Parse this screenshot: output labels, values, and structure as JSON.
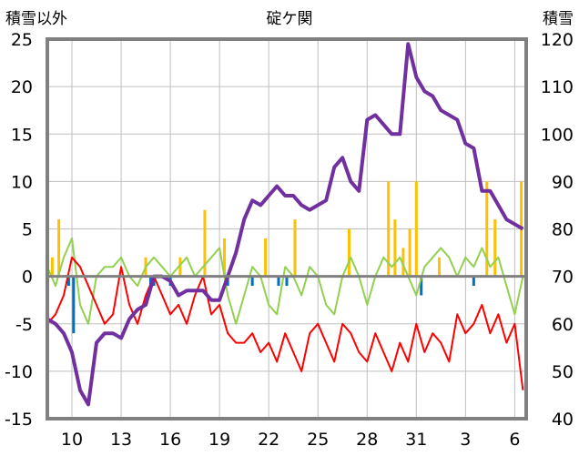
{
  "chart_data": {
    "type": "line",
    "title": "碇ケ関",
    "ylabel_left": "積雪以外",
    "ylabel_right": "積雪",
    "ylim_left": [
      -15,
      25
    ],
    "ylim_right": [
      40,
      120
    ],
    "yticks_left": [
      "25",
      "20",
      "15",
      "10",
      "5",
      "0",
      "-5",
      "-10",
      "-15"
    ],
    "yticks_right": [
      "120",
      "110",
      "100",
      "90",
      "80",
      "70",
      "60",
      "50",
      "40"
    ],
    "xticks": [
      "10",
      "13",
      "16",
      "19",
      "22",
      "25",
      "28",
      "31",
      "3",
      "6"
    ],
    "x_range_days": [
      8.5,
      37.7
    ],
    "grid": true,
    "colors": {
      "snow_depth": "#7030a0",
      "max_temp": "#92d050",
      "min_temp": "#ff0000",
      "precip": "#ffc000",
      "snow_change": "#0070c0",
      "frame": "#808080",
      "grid": "#bfbfbf"
    },
    "series": [
      {
        "type": "line",
        "axis": "right",
        "color_key": "snow_depth",
        "x": [
          8.5,
          9.0,
          9.5,
          10.0,
          10.5,
          11.0,
          11.5,
          12.0,
          12.5,
          13.0,
          13.5,
          14.0,
          14.5,
          15.0,
          15.5,
          16.0,
          16.5,
          17.0,
          17.5,
          18.0,
          18.5,
          19.0,
          19.5,
          20.0,
          20.5,
          21.0,
          21.5,
          22.0,
          22.5,
          23.0,
          23.5,
          24.0,
          24.5,
          25.0,
          25.5,
          26.0,
          26.5,
          27.0,
          27.5,
          28.0,
          28.5,
          29.0,
          29.5,
          30.0,
          30.5,
          31.0,
          31.5,
          32.0,
          32.5,
          33.0,
          33.5,
          34.0,
          34.5,
          35.0,
          35.5,
          36.0,
          36.5,
          37.0,
          37.5
        ],
        "y": [
          61,
          60,
          58,
          54,
          46,
          43,
          56,
          58,
          58,
          57,
          61,
          63,
          64,
          70,
          70,
          69,
          66,
          67,
          67,
          67,
          65,
          65,
          70,
          75,
          82,
          86,
          85,
          87,
          89,
          87,
          87,
          85,
          84,
          85,
          86,
          93,
          95,
          90,
          88,
          103,
          104,
          102,
          100,
          100,
          119,
          112,
          109,
          108,
          105,
          104,
          103,
          98,
          97,
          88,
          88,
          85,
          82,
          81,
          80
        ]
      },
      {
        "type": "line",
        "axis": "left",
        "color_key": "max_temp",
        "x": [
          8.5,
          9.0,
          9.5,
          10.0,
          10.5,
          11.0,
          11.5,
          12.0,
          12.5,
          13.0,
          13.5,
          14.0,
          14.5,
          15.0,
          15.5,
          16.0,
          16.5,
          17.0,
          17.5,
          18.0,
          18.5,
          19.0,
          19.5,
          20.0,
          20.5,
          21.0,
          21.5,
          22.0,
          22.5,
          23.0,
          23.5,
          24.0,
          24.5,
          25.0,
          25.5,
          26.0,
          26.5,
          27.0,
          27.5,
          28.0,
          28.5,
          29.0,
          29.5,
          30.0,
          30.5,
          31.0,
          31.5,
          32.0,
          32.5,
          33.0,
          33.5,
          34.0,
          34.5,
          35.0,
          35.5,
          36.0,
          36.5,
          37.0,
          37.5
        ],
        "y": [
          1,
          -1,
          2,
          4,
          -3,
          -5,
          0,
          1,
          1,
          2,
          0,
          -1,
          1,
          2,
          1,
          0,
          1,
          2,
          0,
          1,
          2,
          3,
          -2,
          -5,
          -2,
          1,
          0,
          -3,
          -4,
          1,
          0,
          -2,
          1,
          0,
          -3,
          -4,
          0,
          2,
          0,
          -3,
          0,
          2,
          1,
          2,
          0,
          -2,
          1,
          2,
          3,
          2,
          0,
          2,
          1,
          3,
          1,
          2,
          -1,
          -4,
          0
        ]
      },
      {
        "type": "line",
        "axis": "left",
        "color_key": "min_temp",
        "x": [
          8.5,
          9.0,
          9.5,
          10.0,
          10.5,
          11.0,
          11.5,
          12.0,
          12.5,
          13.0,
          13.5,
          14.0,
          14.5,
          15.0,
          15.5,
          16.0,
          16.5,
          17.0,
          17.5,
          18.0,
          18.5,
          19.0,
          19.5,
          20.0,
          20.5,
          21.0,
          21.5,
          22.0,
          22.5,
          23.0,
          23.5,
          24.0,
          24.5,
          25.0,
          25.5,
          26.0,
          26.5,
          27.0,
          27.5,
          28.0,
          28.5,
          29.0,
          29.5,
          30.0,
          30.5,
          31.0,
          31.5,
          32.0,
          32.5,
          33.0,
          33.5,
          34.0,
          34.5,
          35.0,
          35.5,
          36.0,
          36.5,
          37.0,
          37.5
        ],
        "y": [
          -5,
          -4,
          -2,
          2,
          1,
          -1,
          -3,
          -5,
          -4,
          1,
          -3,
          -5,
          -2,
          0,
          -2,
          -4,
          -3,
          -5,
          -2,
          0,
          -4,
          -3,
          -6,
          -7,
          -7,
          -6,
          -8,
          -7,
          -9,
          -6,
          -8,
          -10,
          -6,
          -5,
          -7,
          -9,
          -5,
          -6,
          -8,
          -9,
          -6,
          -8,
          -10,
          -7,
          -9,
          -5,
          -8,
          -6,
          -7,
          -9,
          -4,
          -6,
          -5,
          -3,
          -6,
          -4,
          -7,
          -5,
          -12
        ]
      }
    ],
    "bars": [
      {
        "axis": "left",
        "color_key": "precip",
        "x": [
          8.8,
          9.2,
          14.5,
          16.6,
          18.1,
          19.3,
          21.8,
          23.6,
          26.9,
          29.3,
          29.7,
          30.2,
          30.6,
          31.0,
          32.4,
          35.3,
          35.8,
          37.4
        ],
        "y": [
          2,
          6,
          2,
          2,
          7,
          4,
          4,
          6,
          5,
          10,
          6,
          3,
          5,
          10,
          2,
          10,
          6,
          10
        ]
      },
      {
        "axis": "left",
        "color_key": "snow_change",
        "x": [
          9.8,
          10.1,
          14.8,
          15.0,
          16.0,
          19.5,
          21.0,
          22.6,
          23.1,
          31.3,
          34.5
        ],
        "y": [
          -1,
          -6,
          -1,
          -1,
          -1,
          -1,
          -1,
          -1,
          -1,
          -2,
          -1
        ]
      }
    ]
  }
}
